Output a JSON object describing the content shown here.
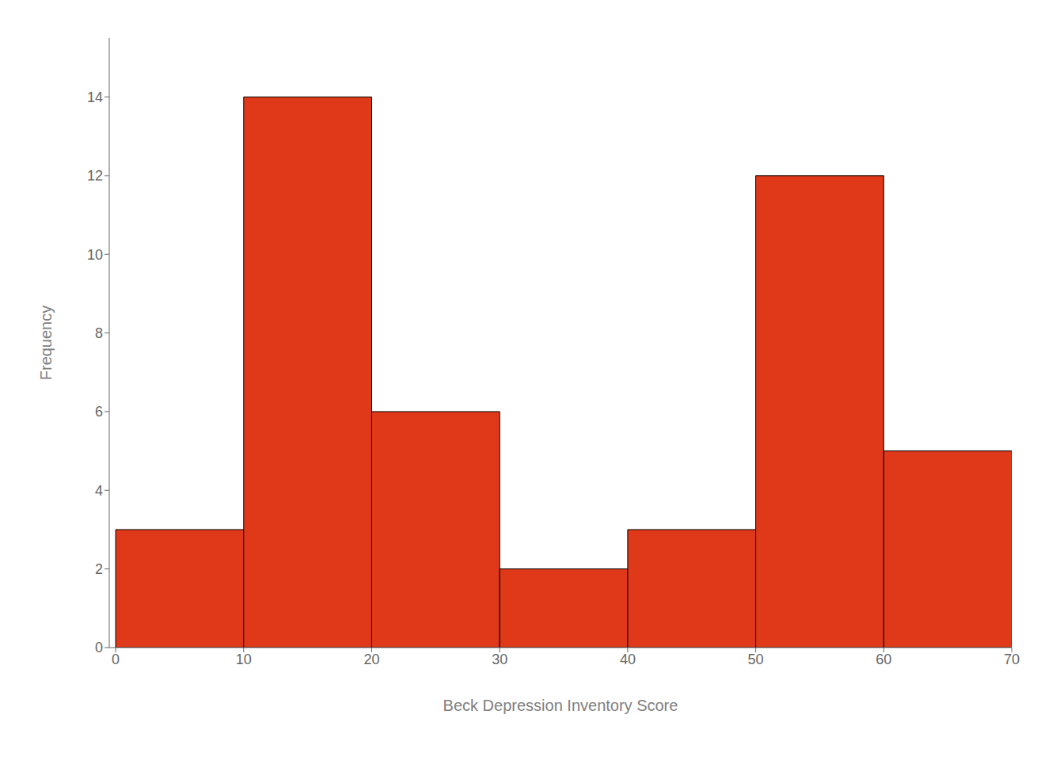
{
  "chart_data": {
    "type": "histogram",
    "bins": [
      0,
      10,
      20,
      30,
      40,
      50,
      60,
      70
    ],
    "values": [
      3,
      14,
      6,
      2,
      3,
      12,
      5
    ],
    "color": "#E0391A",
    "xlabel": "Beck Depression Inventory Score",
    "ylabel": "Frequency",
    "xlim": [
      -0.5,
      70
    ],
    "ylim": [
      0,
      15.5
    ],
    "xticks": [
      0,
      10,
      20,
      30,
      40,
      50,
      60,
      70
    ],
    "yticks": [
      0,
      2,
      4,
      6,
      8,
      10,
      12,
      14
    ],
    "grid": false
  }
}
